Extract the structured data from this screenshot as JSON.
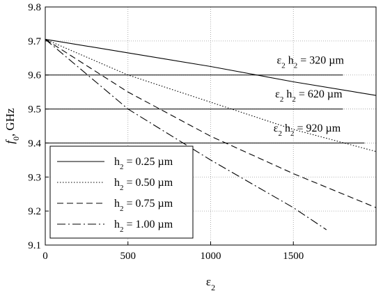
{
  "chart_data": {
    "type": "line",
    "title": "",
    "xlabel": "ε₂",
    "ylabel_italic": "f",
    "ylabel_sub": "0",
    "ylabel_rest": ", GHz",
    "xlim": [
      0,
      2000
    ],
    "ylim": [
      9.1,
      9.8
    ],
    "x_ticks": [
      0,
      500,
      1000,
      1500
    ],
    "y_ticks": [
      9.1,
      9.2,
      9.3,
      9.4,
      9.5,
      9.6,
      9.7,
      9.8
    ],
    "y_tick_labels": [
      "9.1",
      "9.2",
      "9.3",
      "9.4",
      "9.5",
      "9.6",
      "9.7",
      "9.8"
    ],
    "x_tick_labels": [
      "0",
      "500",
      "1000",
      "1500"
    ],
    "grid": true,
    "legend_position": "bottom-left",
    "series": [
      {
        "name": "h₂ = 0.25 µm",
        "legend_main": "h",
        "legend_sub": "2",
        "legend_rest": " = 0.25 µm",
        "dash": "solid",
        "x": [
          0,
          500,
          1000,
          1500,
          2000
        ],
        "y": [
          9.705,
          9.665,
          9.625,
          9.58,
          9.54
        ]
      },
      {
        "name": "h₂ = 0.50 µm",
        "legend_main": "h",
        "legend_sub": "2",
        "legend_rest": " = 0.50 µm",
        "dash": "dotted",
        "x": [
          0,
          500,
          1000,
          1500,
          2000
        ],
        "y": [
          9.705,
          9.6,
          9.52,
          9.44,
          9.375
        ]
      },
      {
        "name": "h₂ = 0.75 µm",
        "legend_main": "h",
        "legend_sub": "2",
        "legend_rest": " = 0.75 µm",
        "dash": "dashed",
        "x": [
          0,
          500,
          1000,
          1500,
          2000
        ],
        "y": [
          9.705,
          9.55,
          9.42,
          9.31,
          9.21
        ]
      },
      {
        "name": "h₂ = 1.00 µm",
        "legend_main": "h",
        "legend_sub": "2",
        "legend_rest": " = 1.00 µm",
        "dash": "dashdot",
        "x": [
          0,
          500,
          1000,
          1500,
          1700
        ],
        "y": [
          9.705,
          9.5,
          9.35,
          9.21,
          9.145
        ]
      }
    ],
    "annotations": [
      {
        "prefix": "ε",
        "sub1": "2",
        "mid": " h",
        "sub2": "2",
        "rest": " = 320 µm",
        "y": 9.6,
        "x_end": 1800,
        "label_x": 1400,
        "label_y": 9.65
      },
      {
        "prefix": "ε",
        "sub1": "2",
        "mid": " h",
        "sub2": "2",
        "rest": " = 620 µm",
        "y": 9.5,
        "x_end": 1800,
        "label_x": 1390,
        "label_y": 9.55
      },
      {
        "prefix": "ε",
        "sub1": "2",
        "mid": " h",
        "sub2": "2",
        "rest": " = 920 µm",
        "y": 9.4,
        "x_end": 1930,
        "label_x": 1380,
        "label_y": 9.45
      }
    ]
  }
}
